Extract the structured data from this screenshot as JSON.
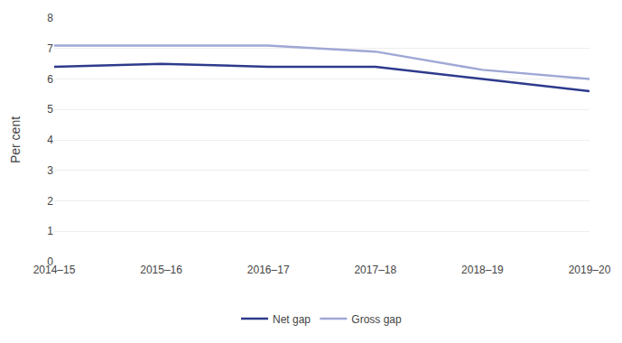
{
  "chart_data": {
    "type": "line",
    "ylabel": "Per cent",
    "categories": [
      "2014–15",
      "2015–16",
      "2016–17",
      "2017–18",
      "2018–19",
      "2019–20"
    ],
    "series": [
      {
        "name": "Gross gap",
        "color": "#9fa8d5",
        "values": [
          7.1,
          7.1,
          7.1,
          6.9,
          6.3,
          6.0
        ]
      },
      {
        "name": "Net gap",
        "color": "#2e3a8c",
        "values": [
          6.4,
          6.5,
          6.4,
          6.4,
          6.0,
          5.6
        ]
      }
    ],
    "ylim": [
      0,
      8
    ],
    "yticks": [
      0,
      1,
      2,
      3,
      4,
      5,
      6,
      7,
      8
    ],
    "grid": true,
    "legend": "bottom"
  }
}
